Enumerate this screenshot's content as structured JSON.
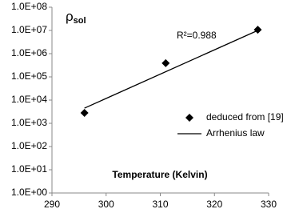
{
  "chart_data": {
    "type": "scatter",
    "ylabel_symbol": "ρ",
    "ylabel_subscript": "sol",
    "xlabel": "Temperature (Kelvin)",
    "annotation": "R²=0.988",
    "log_y": true,
    "grid": false,
    "legend": "lower right",
    "xlim": [
      290,
      330
    ],
    "xticks": [
      290,
      300,
      310,
      320,
      330
    ],
    "ylim": [
      1,
      100000000
    ],
    "yticks": [
      {
        "value": 1,
        "label": "1.0E+00"
      },
      {
        "value": 10,
        "label": "1.0E+01"
      },
      {
        "value": 100,
        "label": "1.0E+02"
      },
      {
        "value": 1000,
        "label": "1.0E+03"
      },
      {
        "value": 10000,
        "label": "1.0E+04"
      },
      {
        "value": 100000,
        "label": "1.0E+05"
      },
      {
        "value": 1000000,
        "label": "1.0E+06"
      },
      {
        "value": 10000000,
        "label": "1.0E+07"
      },
      {
        "value": 100000000,
        "label": "1.0E+08"
      }
    ],
    "series": [
      {
        "name": "deduced from [19]",
        "color": "#000000",
        "marker": "diamond",
        "x": [
          296,
          311,
          328
        ],
        "values": [
          2800,
          390000,
          10700000
        ]
      },
      {
        "name": "Arrhenius law",
        "color": "#000000",
        "marker": "line",
        "x": [
          296,
          328
        ],
        "values": [
          4500,
          10000000
        ]
      }
    ]
  }
}
